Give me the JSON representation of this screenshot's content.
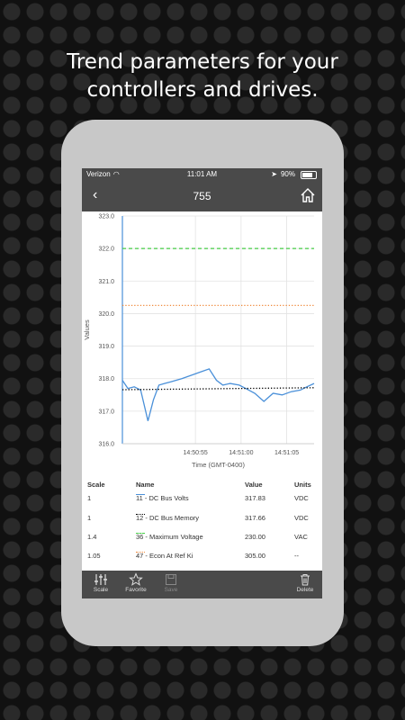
{
  "headline": [
    "Trend parameters for your",
    "controllers and drives."
  ],
  "status_bar": {
    "carrier": "Verizon",
    "time": "11:01 AM",
    "battery": "90%"
  },
  "nav": {
    "back_icon": "chevron-left-icon",
    "title": "755",
    "home_icon": "home-icon"
  },
  "chart_data": {
    "type": "line",
    "xlabel": "Time (GMT-0400)",
    "ylabel": "Values",
    "ylim": [
      316.0,
      323.0
    ],
    "y_ticks": [
      "316.0",
      "317.0",
      "318.0",
      "319.0",
      "320.0",
      "321.0",
      "322.0",
      "323.0"
    ],
    "x_ticks": [
      "14:50:55",
      "14:51:00",
      "14:51:05"
    ],
    "x_tick_pos": [
      55,
      60,
      65
    ],
    "xlim": [
      47,
      68
    ],
    "grid": true,
    "series": [
      {
        "name": "11 - DC Bus Volts",
        "color": "#4a90d9",
        "style": "solid",
        "x": [
          47,
          47.6,
          48.3,
          49.0,
          49.8,
          50.4,
          51.0,
          51.6,
          52.3,
          53.5,
          54.5,
          55.5,
          56.5,
          57.3,
          58.0,
          58.8,
          59.8,
          60.5,
          61.5,
          62.5,
          63.5,
          64.5,
          65.5,
          66.5,
          67.2,
          68
        ],
        "y": [
          317.95,
          317.7,
          317.75,
          317.65,
          316.7,
          317.35,
          317.8,
          317.85,
          317.9,
          318.0,
          318.1,
          318.2,
          318.3,
          317.95,
          317.8,
          317.85,
          317.8,
          317.7,
          317.55,
          317.3,
          317.55,
          317.5,
          317.6,
          317.65,
          317.75,
          317.85
        ]
      },
      {
        "name": "12 - DC Bus Memory",
        "color": "#000000",
        "style": "dotted",
        "x": [
          47,
          68
        ],
        "y": [
          317.66,
          317.72
        ]
      },
      {
        "name": "36 - Maximum Voltage",
        "color": "#44cc44",
        "style": "dashed",
        "x": [
          47,
          68
        ],
        "y": [
          322.0,
          322.0
        ]
      },
      {
        "name": "47 - Econ At Ref Ki",
        "color": "#f08a3c",
        "style": "dotted",
        "x": [
          47,
          68
        ],
        "y": [
          320.25,
          320.25
        ]
      }
    ]
  },
  "legend": {
    "headers": {
      "scale": "Scale",
      "name": "Name",
      "value": "Value",
      "units": "Units"
    },
    "rows": [
      {
        "scale": "1",
        "name": "11 - DC Bus Volts",
        "value": "317.83",
        "units": "VDC"
      },
      {
        "scale": "1",
        "name": "12 - DC Bus Memory",
        "value": "317.66",
        "units": "VDC"
      },
      {
        "scale": "1.4",
        "name": "36 - Maximum Voltage",
        "value": "230.00",
        "units": "VAC"
      },
      {
        "scale": "1.05",
        "name": "47 - Econ At Ref Ki",
        "value": "305.00",
        "units": "--"
      }
    ]
  },
  "toolbar": {
    "scale_label": "Scale",
    "favorite_label": "Favorite",
    "save_label": "Save",
    "delete_label": "Delete"
  }
}
